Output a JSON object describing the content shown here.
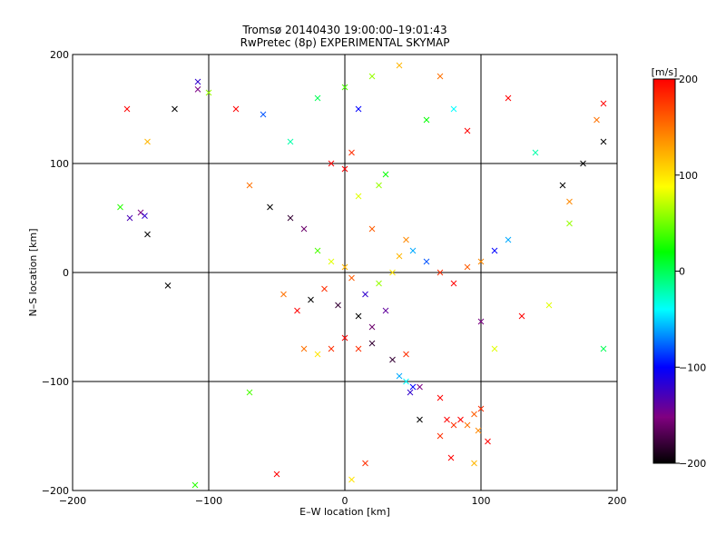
{
  "chart_data": {
    "type": "scatter",
    "title": "Tromsø 20140430 19:00:00–19:01:43",
    "subtitle": "RwPretec (8p) EXPERIMENTAL SKYMAP",
    "xlabel": "E–W location [km]",
    "ylabel": "N–S location [km]",
    "xlim": [
      -200,
      200
    ],
    "ylim": [
      -200,
      200
    ],
    "x_ticks": [
      -200,
      -100,
      0,
      100,
      200
    ],
    "y_ticks": [
      -200,
      -100,
      0,
      100,
      200
    ],
    "x_tick_labels": [
      "−200",
      "−100",
      "0",
      "100",
      "200"
    ],
    "y_tick_labels": [
      "−200",
      "−100",
      "0",
      "100",
      "200"
    ],
    "grid": true,
    "colorbar": {
      "label": "[m/s]",
      "range": [
        -200,
        200
      ],
      "ticks": [
        200,
        100,
        0,
        -100,
        -200
      ],
      "tick_labels": [
        "200",
        "100",
        "0",
        "−100",
        "−200"
      ],
      "colormap": [
        "#000000",
        "#800080",
        "#0000ff",
        "#00ffff",
        "#00ff00",
        "#ffff00",
        "#ff8000",
        "#ff0000"
      ]
    },
    "marker_types": [
      "dot",
      "cross"
    ],
    "series": [
      {
        "marker": "cross",
        "points": [
          [
            -160,
            150,
            200
          ],
          [
            -108,
            175,
            -120
          ],
          [
            -108,
            168,
            -150
          ],
          [
            -125,
            150,
            -200
          ],
          [
            -145,
            120,
            120
          ],
          [
            -165,
            60,
            30
          ],
          [
            -150,
            55,
            -150
          ],
          [
            -158,
            50,
            -130
          ],
          [
            -147,
            52,
            -120
          ],
          [
            -145,
            35,
            -200
          ],
          [
            -130,
            -12,
            -200
          ],
          [
            -100,
            165,
            60
          ],
          [
            -80,
            150,
            200
          ],
          [
            -60,
            145,
            -80
          ],
          [
            -40,
            120,
            -20
          ],
          [
            -70,
            80,
            150
          ],
          [
            -55,
            60,
            -200
          ],
          [
            -40,
            50,
            -180
          ],
          [
            -30,
            40,
            -160
          ],
          [
            -20,
            20,
            40
          ],
          [
            -10,
            10,
            80
          ],
          [
            0,
            5,
            120
          ],
          [
            5,
            -5,
            160
          ],
          [
            -15,
            -15,
            180
          ],
          [
            -25,
            -25,
            -200
          ],
          [
            -35,
            -35,
            200
          ],
          [
            -45,
            -20,
            150
          ],
          [
            -5,
            -30,
            -180
          ],
          [
            10,
            -40,
            -200
          ],
          [
            20,
            -50,
            -160
          ],
          [
            30,
            -35,
            -140
          ],
          [
            15,
            -20,
            -120
          ],
          [
            25,
            -10,
            60
          ],
          [
            35,
            0,
            100
          ],
          [
            40,
            15,
            120
          ],
          [
            45,
            30,
            140
          ],
          [
            20,
            40,
            160
          ],
          [
            10,
            70,
            80
          ],
          [
            25,
            80,
            60
          ],
          [
            30,
            90,
            20
          ],
          [
            0,
            95,
            200
          ],
          [
            -10,
            100,
            200
          ],
          [
            5,
            110,
            180
          ],
          [
            50,
            20,
            -60
          ],
          [
            60,
            10,
            -80
          ],
          [
            70,
            0,
            180
          ],
          [
            80,
            -10,
            200
          ],
          [
            90,
            5,
            160
          ],
          [
            100,
            10,
            140
          ],
          [
            110,
            20,
            -100
          ],
          [
            120,
            30,
            -60
          ],
          [
            -30,
            -70,
            150
          ],
          [
            -20,
            -75,
            100
          ],
          [
            -10,
            -70,
            180
          ],
          [
            0,
            -60,
            200
          ],
          [
            10,
            -70,
            180
          ],
          [
            20,
            -65,
            -180
          ],
          [
            35,
            -80,
            -180
          ],
          [
            45,
            -75,
            180
          ],
          [
            40,
            -95,
            -60
          ],
          [
            45,
            -100,
            -40
          ],
          [
            50,
            -105,
            -100
          ],
          [
            55,
            -105,
            -150
          ],
          [
            48,
            -110,
            -120
          ],
          [
            55,
            -135,
            -200
          ],
          [
            70,
            -115,
            200
          ],
          [
            75,
            -135,
            200
          ],
          [
            80,
            -140,
            180
          ],
          [
            85,
            -135,
            200
          ],
          [
            90,
            -140,
            150
          ],
          [
            95,
            -130,
            160
          ],
          [
            98,
            -145,
            140
          ],
          [
            100,
            -125,
            180
          ],
          [
            105,
            -155,
            200
          ],
          [
            70,
            -150,
            180
          ],
          [
            78,
            -170,
            200
          ],
          [
            95,
            -175,
            120
          ],
          [
            -70,
            -110,
            40
          ],
          [
            -110,
            -195,
            30
          ],
          [
            -50,
            -185,
            200
          ],
          [
            5,
            -190,
            100
          ],
          [
            15,
            -175,
            180
          ],
          [
            165,
            65,
            140
          ],
          [
            175,
            100,
            -200
          ],
          [
            190,
            120,
            -200
          ],
          [
            190,
            155,
            200
          ],
          [
            185,
            140,
            150
          ],
          [
            160,
            80,
            -200
          ],
          [
            165,
            45,
            60
          ],
          [
            190,
            -70,
            0
          ],
          [
            150,
            -30,
            80
          ],
          [
            130,
            -40,
            200
          ],
          [
            110,
            -70,
            80
          ],
          [
            100,
            -45,
            -150
          ],
          [
            90,
            130,
            200
          ],
          [
            80,
            150,
            -40
          ],
          [
            70,
            180,
            150
          ],
          [
            40,
            190,
            120
          ],
          [
            20,
            180,
            60
          ],
          [
            0,
            170,
            40
          ],
          [
            -20,
            160,
            0
          ],
          [
            10,
            150,
            -100
          ],
          [
            60,
            140,
            20
          ],
          [
            120,
            160,
            200
          ],
          [
            140,
            110,
            -20
          ]
        ]
      }
    ]
  }
}
